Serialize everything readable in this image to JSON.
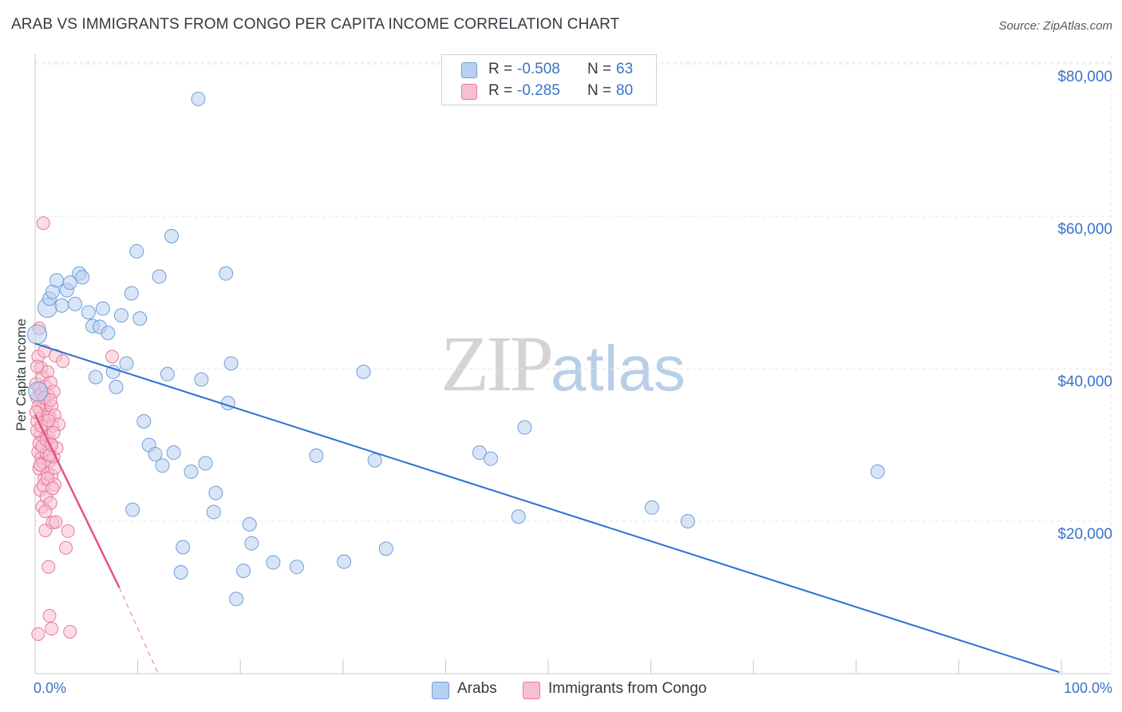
{
  "header": {
    "title": "ARAB VS IMMIGRANTS FROM CONGO PER CAPITA INCOME CORRELATION CHART",
    "source": "Source: ZipAtlas.com"
  },
  "watermark": {
    "zip": "ZIP",
    "atlas": "atlas"
  },
  "legend_top": {
    "rows": [
      {
        "r_label": "R =",
        "r_value": "-0.508",
        "n_label": "N =",
        "n_value": "63"
      },
      {
        "r_label": "R =",
        "r_value": "-0.285",
        "n_label": "N =",
        "n_value": "80"
      }
    ]
  },
  "legend_bottom": {
    "series1": "Arabs",
    "series2": "Immigrants from Congo"
  },
  "colors": {
    "arabs_fill": "#b8d0f0",
    "arabs_stroke": "#6f9fd8",
    "arabs_line": "#2b6fd1",
    "congo_fill": "#f7bfd0",
    "congo_stroke": "#e6799b",
    "congo_line": "#e6537f",
    "grid": "#e4e4e4",
    "tick_text": "#3a73c6"
  },
  "chart_data": {
    "type": "scatter",
    "title": "ARAB VS IMMIGRANTS FROM CONGO PER CAPITA INCOME CORRELATION CHART",
    "xlabel": "",
    "ylabel": "Per Capita Income",
    "xlim": [
      0,
      100
    ],
    "ylim": [
      0,
      80000
    ],
    "x_tick_labels": [
      "0.0%",
      "100.0%"
    ],
    "y_tick_labels": [
      "$80,000",
      "$60,000",
      "$40,000",
      "$20,000"
    ],
    "y_tick_values": [
      80000,
      60000,
      40000,
      20000
    ],
    "series": [
      {
        "name": "Arabs",
        "R": -0.508,
        "N": 63,
        "trend": {
          "x": [
            0,
            99.8
          ],
          "y": [
            43300,
            200
          ]
        },
        "points": [
          [
            0.2,
            44500
          ],
          [
            1.2,
            48000
          ],
          [
            1.4,
            49200
          ],
          [
            1.7,
            50100
          ],
          [
            2.1,
            51600
          ],
          [
            2.6,
            48300
          ],
          [
            3.1,
            50300
          ],
          [
            3.4,
            51300
          ],
          [
            3.9,
            48500
          ],
          [
            4.3,
            52500
          ],
          [
            4.6,
            52000
          ],
          [
            5.2,
            47400
          ],
          [
            5.6,
            45600
          ],
          [
            5.9,
            38900
          ],
          [
            6.3,
            45500
          ],
          [
            6.6,
            47900
          ],
          [
            7.1,
            44700
          ],
          [
            7.6,
            39600
          ],
          [
            7.9,
            37600
          ],
          [
            8.4,
            47000
          ],
          [
            8.9,
            40700
          ],
          [
            9.4,
            49900
          ],
          [
            9.5,
            21500
          ],
          [
            9.9,
            55400
          ],
          [
            10.2,
            46600
          ],
          [
            10.6,
            33100
          ],
          [
            11.1,
            30000
          ],
          [
            11.7,
            28800
          ],
          [
            12.1,
            52100
          ],
          [
            12.4,
            27300
          ],
          [
            12.9,
            39300
          ],
          [
            13.3,
            57400
          ],
          [
            13.5,
            29000
          ],
          [
            14.2,
            13300
          ],
          [
            14.4,
            16600
          ],
          [
            15.2,
            26500
          ],
          [
            15.9,
            75400
          ],
          [
            16.2,
            38600
          ],
          [
            16.6,
            27600
          ],
          [
            17.4,
            21200
          ],
          [
            17.6,
            23700
          ],
          [
            18.6,
            52500
          ],
          [
            18.8,
            35500
          ],
          [
            19.1,
            40700
          ],
          [
            19.6,
            9800
          ],
          [
            20.3,
            13500
          ],
          [
            20.9,
            19600
          ],
          [
            21.1,
            17100
          ],
          [
            23.2,
            14600
          ],
          [
            25.5,
            14000
          ],
          [
            27.4,
            28600
          ],
          [
            30.1,
            14700
          ],
          [
            32.0,
            39600
          ],
          [
            33.1,
            28000
          ],
          [
            34.2,
            16400
          ],
          [
            43.3,
            29000
          ],
          [
            44.4,
            28200
          ],
          [
            47.1,
            20600
          ],
          [
            47.7,
            32300
          ],
          [
            60.1,
            21800
          ],
          [
            63.6,
            20000
          ],
          [
            82.1,
            26500
          ],
          [
            0.3,
            37000
          ]
        ]
      },
      {
        "name": "Immigrants from Congo",
        "R": -0.285,
        "N": 80,
        "trend": {
          "x": [
            0,
            8.2
          ],
          "y": [
            34000,
            11300
          ]
        },
        "trend_dashed": {
          "x": [
            8.2,
            12.0
          ],
          "y": [
            11300,
            0
          ]
        },
        "points": [
          [
            0.1,
            38000
          ],
          [
            0.2,
            36200
          ],
          [
            0.2,
            33100
          ],
          [
            0.3,
            41600
          ],
          [
            0.3,
            29100
          ],
          [
            0.4,
            45300
          ],
          [
            0.4,
            37400
          ],
          [
            0.4,
            26900
          ],
          [
            0.5,
            34500
          ],
          [
            0.5,
            31400
          ],
          [
            0.5,
            24100
          ],
          [
            0.6,
            40100
          ],
          [
            0.6,
            36700
          ],
          [
            0.6,
            28300
          ],
          [
            0.7,
            38900
          ],
          [
            0.7,
            33800
          ],
          [
            0.7,
            21900
          ],
          [
            0.8,
            59100
          ],
          [
            0.8,
            35600
          ],
          [
            0.8,
            27700
          ],
          [
            0.9,
            42300
          ],
          [
            0.9,
            30800
          ],
          [
            0.9,
            25600
          ],
          [
            1.0,
            37700
          ],
          [
            1.0,
            32600
          ],
          [
            1.0,
            18800
          ],
          [
            1.1,
            35200
          ],
          [
            1.1,
            28900
          ],
          [
            1.1,
            23200
          ],
          [
            1.2,
            39600
          ],
          [
            1.2,
            34000
          ],
          [
            1.2,
            26300
          ],
          [
            1.3,
            36500
          ],
          [
            1.3,
            31100
          ],
          [
            1.3,
            14000
          ],
          [
            1.4,
            33700
          ],
          [
            1.4,
            27900
          ],
          [
            1.4,
            7600
          ],
          [
            1.5,
            38200
          ],
          [
            1.5,
            30200
          ],
          [
            1.5,
            22400
          ],
          [
            1.6,
            35100
          ],
          [
            1.6,
            26000
          ],
          [
            1.6,
            5900
          ],
          [
            1.7,
            32500
          ],
          [
            1.7,
            19800
          ],
          [
            1.8,
            37000
          ],
          [
            1.8,
            28400
          ],
          [
            1.9,
            33900
          ],
          [
            1.9,
            24800
          ],
          [
            2.0,
            41700
          ],
          [
            2.0,
            19900
          ],
          [
            2.1,
            29600
          ],
          [
            2.3,
            32700
          ],
          [
            2.7,
            41000
          ],
          [
            3.0,
            16500
          ],
          [
            3.2,
            18700
          ],
          [
            3.4,
            5500
          ],
          [
            7.5,
            41600
          ],
          [
            0.3,
            5200
          ],
          [
            0.2,
            31900
          ],
          [
            0.3,
            35000
          ],
          [
            0.4,
            30200
          ],
          [
            0.5,
            27400
          ],
          [
            0.6,
            32500
          ],
          [
            0.7,
            29800
          ],
          [
            0.8,
            24700
          ],
          [
            0.9,
            36200
          ],
          [
            1.0,
            21300
          ],
          [
            1.1,
            30700
          ],
          [
            1.2,
            25600
          ],
          [
            1.3,
            33200
          ],
          [
            1.4,
            28700
          ],
          [
            1.5,
            35900
          ],
          [
            1.6,
            30000
          ],
          [
            1.7,
            24300
          ],
          [
            1.8,
            31600
          ],
          [
            1.9,
            27000
          ],
          [
            0.2,
            40300
          ],
          [
            0.1,
            34300
          ]
        ]
      }
    ],
    "grid": true,
    "legend_position": "top-center"
  }
}
